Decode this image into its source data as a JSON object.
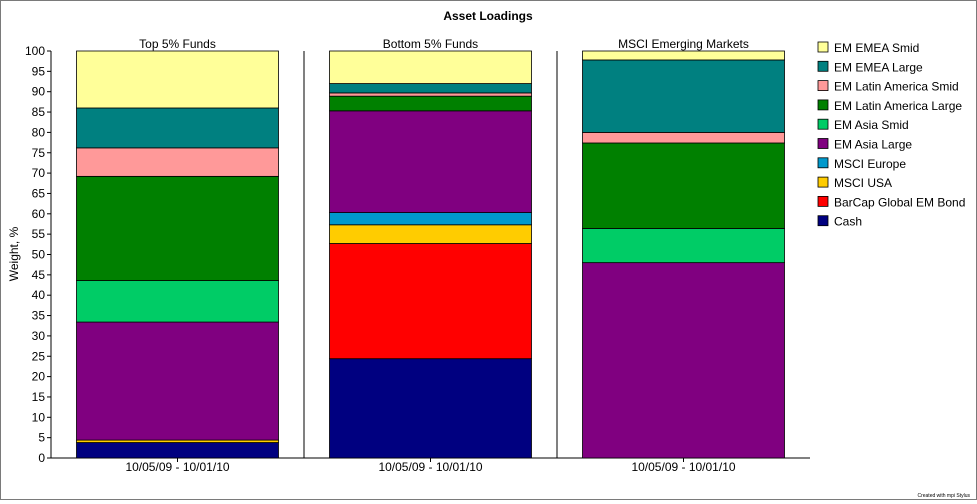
{
  "chart_data": {
    "type": "bar",
    "stacked": true,
    "title": "Asset Loadings",
    "ylabel": "Weight, %",
    "ylim": [
      0,
      100
    ],
    "yticks": [
      0,
      5,
      10,
      15,
      20,
      25,
      30,
      35,
      40,
      45,
      50,
      55,
      60,
      65,
      70,
      75,
      80,
      85,
      90,
      95,
      100
    ],
    "panels": [
      {
        "title": "Top 5% Funds",
        "category": "10/05/09 - 10/01/10"
      },
      {
        "title": "Bottom 5% Funds",
        "category": "10/05/09 - 10/01/10"
      },
      {
        "title": "MSCI Emerging Markets",
        "category": "10/05/09 - 10/01/10"
      }
    ],
    "series": [
      {
        "name": "Cash",
        "color": "#000080",
        "values": [
          3.8,
          24.4,
          0
        ]
      },
      {
        "name": "BarCap Global EM Bond",
        "color": "#ff0000",
        "values": [
          0,
          28.3,
          0
        ]
      },
      {
        "name": "MSCI USA",
        "color": "#ffcc00",
        "values": [
          0.6,
          4.6,
          0
        ]
      },
      {
        "name": "MSCI Europe",
        "color": "#0099cc",
        "values": [
          0,
          3.0,
          0
        ]
      },
      {
        "name": "EM Asia Large",
        "color": "#800080",
        "values": [
          29.0,
          25.0,
          48.0
        ]
      },
      {
        "name": "EM Asia Smid",
        "color": "#00cc66",
        "values": [
          10.2,
          0,
          8.4
        ]
      },
      {
        "name": "EM Latin America Large",
        "color": "#008000",
        "values": [
          25.6,
          3.6,
          21.0
        ]
      },
      {
        "name": "EM Latin America Smid",
        "color": "#ff9999",
        "values": [
          7.0,
          0.8,
          2.6
        ]
      },
      {
        "name": "EM EMEA Large",
        "color": "#008080",
        "values": [
          9.8,
          2.3,
          17.8
        ]
      },
      {
        "name": "EM EMEA Smid",
        "color": "#ffff99",
        "values": [
          14.0,
          8.0,
          2.2
        ]
      }
    ],
    "legend_position": "right",
    "grid": false
  },
  "footer": {
    "credit": "Created with mpi Stylus"
  }
}
